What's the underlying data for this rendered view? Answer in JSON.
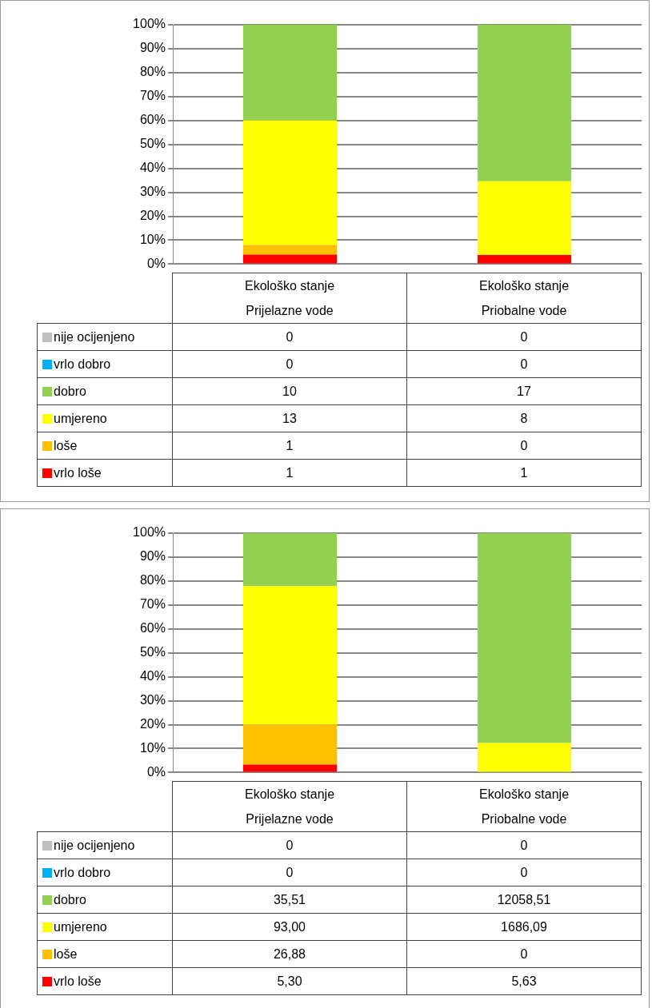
{
  "chart_data": [
    {
      "type": "bar",
      "stacked": true,
      "categories": [
        "Ekološko stanje\nPrijelazne vode",
        "Ekološko stanje\nPriobalne vode"
      ],
      "ylim": [
        0,
        100
      ],
      "yticks": [
        {
          "value": 0,
          "label": "0%"
        },
        {
          "value": 10,
          "label": "10%"
        },
        {
          "value": 20,
          "label": "20%"
        },
        {
          "value": 30,
          "label": "30%"
        },
        {
          "value": 40,
          "label": "40%"
        },
        {
          "value": 50,
          "label": "50%"
        },
        {
          "value": 60,
          "label": "60%"
        },
        {
          "value": 70,
          "label": "70%"
        },
        {
          "value": 80,
          "label": "80%"
        },
        {
          "value": 90,
          "label": "90%"
        },
        {
          "value": 100,
          "label": "100%"
        }
      ],
      "grid": "y",
      "legend": "bottom",
      "annotations": [
        "0",
        "0",
        "0",
        "0",
        "10",
        "17",
        "13",
        "8",
        "1",
        "0",
        "1",
        "1"
      ],
      "series": [
        {
          "name": "vrlo loše",
          "color": "#ff0000",
          "values": [
            4.0,
            3.8
          ]
        },
        {
          "name": "loše",
          "color": "#ffc000",
          "values": [
            4.0,
            0
          ]
        },
        {
          "name": "umjereno",
          "color": "#ffff00",
          "values": [
            52.0,
            30.8
          ]
        },
        {
          "name": "dobro",
          "color": "#92d050",
          "values": [
            40.0,
            65.4
          ]
        },
        {
          "name": "vrlo dobro",
          "color": "#00b0f0",
          "values": [
            0,
            0
          ]
        },
        {
          "name": "nije ocijenjeno",
          "color": "#bfbfbf",
          "values": [
            0,
            0
          ]
        }
      ]
    },
    {
      "type": "bar",
      "stacked": true,
      "categories": [
        "Ekološko stanje\nPrijelazne vode",
        "Ekološko stanje\nPriobalne vode"
      ],
      "ylim": [
        0,
        100
      ],
      "yticks": [
        {
          "value": 0,
          "label": "0%"
        },
        {
          "value": 10,
          "label": "10%"
        },
        {
          "value": 20,
          "label": "20%"
        },
        {
          "value": 30,
          "label": "30%"
        },
        {
          "value": 40,
          "label": "40%"
        },
        {
          "value": 50,
          "label": "50%"
        },
        {
          "value": 60,
          "label": "60%"
        },
        {
          "value": 70,
          "label": "70%"
        },
        {
          "value": 80,
          "label": "80%"
        },
        {
          "value": 90,
          "label": "90%"
        },
        {
          "value": 100,
          "label": "100%"
        }
      ],
      "grid": "y",
      "legend": "bottom",
      "annotations": [
        "0",
        "0",
        "0",
        "0",
        "35,51",
        "12058,51",
        "93,00",
        "1686,09",
        "26,88",
        "0",
        "5,30",
        "5,63"
      ],
      "series": [
        {
          "name": "vrlo loše",
          "color": "#ff0000",
          "values": [
            3.3,
            0.0
          ]
        },
        {
          "name": "loše",
          "color": "#ffc000",
          "values": [
            16.7,
            0
          ]
        },
        {
          "name": "umjereno",
          "color": "#ffff00",
          "values": [
            57.9,
            12.3
          ]
        },
        {
          "name": "dobro",
          "color": "#92d050",
          "values": [
            22.1,
            87.7
          ]
        },
        {
          "name": "vrlo dobro",
          "color": "#00b0f0",
          "values": [
            0,
            0
          ]
        },
        {
          "name": "nije ocijenjeno",
          "color": "#bfbfbf",
          "values": [
            0,
            0
          ]
        }
      ]
    }
  ]
}
